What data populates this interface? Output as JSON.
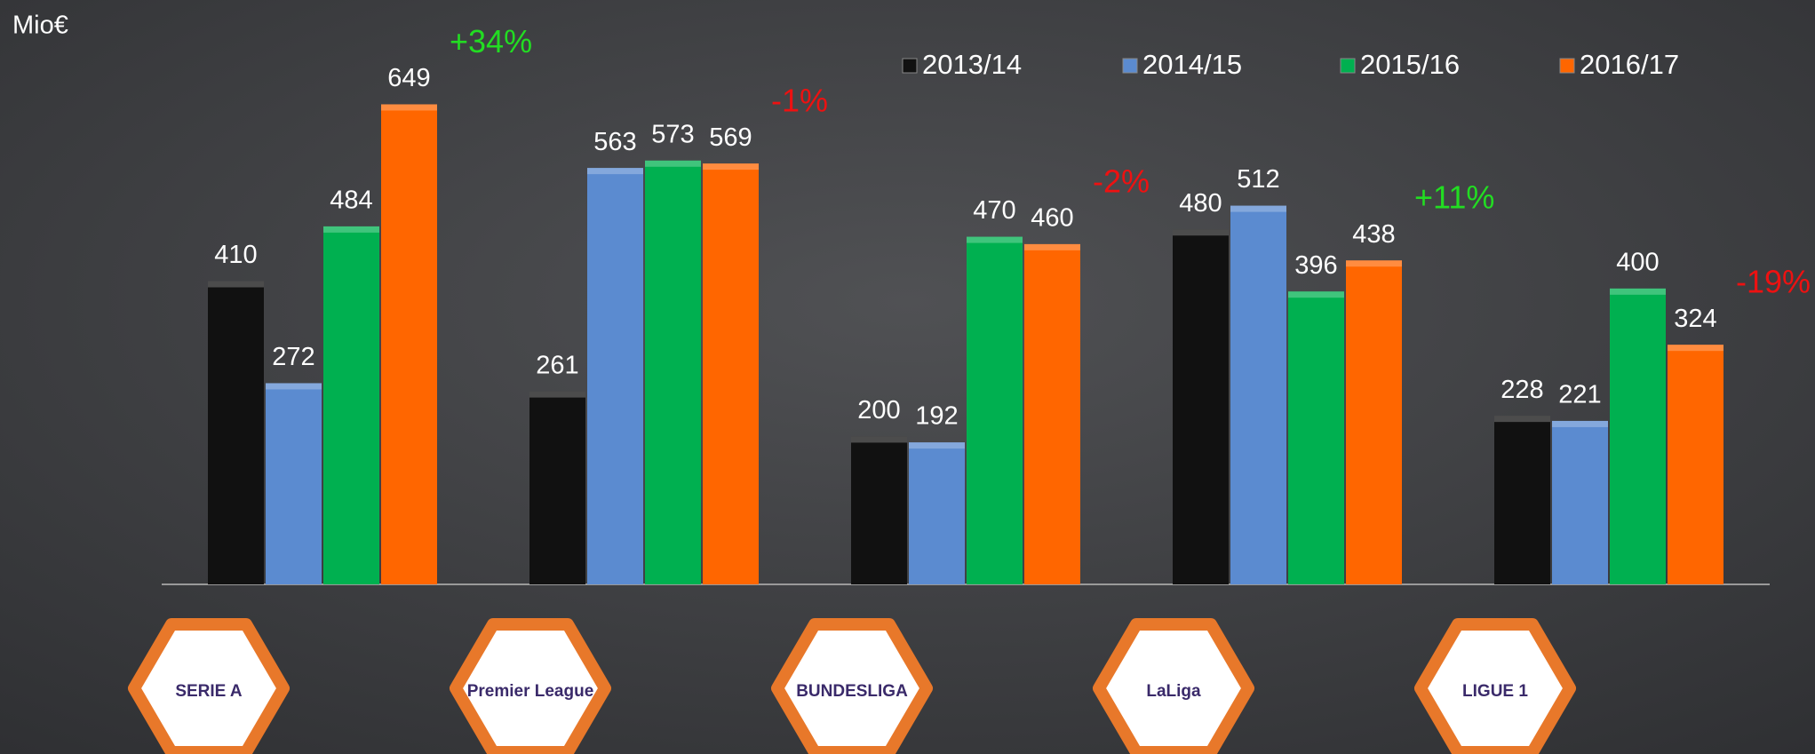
{
  "chart_data": {
    "type": "bar",
    "ylabel": "Mio€",
    "categories": [
      "SERIE A",
      "Premier League",
      "BUNDESLIGA",
      "LaLiga",
      "LIGUE 1"
    ],
    "series": [
      {
        "name": "2013/14",
        "color": "#111111",
        "values": [
          410,
          261,
          200,
          480,
          228
        ]
      },
      {
        "name": "2014/15",
        "color": "#5b8bd0",
        "values": [
          272,
          563,
          192,
          512,
          221
        ]
      },
      {
        "name": "2015/16",
        "color": "#00b050",
        "values": [
          484,
          573,
          470,
          396,
          400
        ]
      },
      {
        "name": "2016/17",
        "color": "#ff6600",
        "values": [
          649,
          569,
          460,
          438,
          324
        ]
      }
    ],
    "ylim": [
      0,
      700
    ],
    "annotations": [
      {
        "text": "+34%",
        "color": "#22dd22"
      },
      {
        "text": "-1%",
        "color": "#ee1111"
      },
      {
        "text": "-2%",
        "color": "#ee1111"
      },
      {
        "text": "+11%",
        "color": "#22dd22"
      },
      {
        "text": "-19%",
        "color": "#ee1111"
      }
    ],
    "legend": "top"
  }
}
